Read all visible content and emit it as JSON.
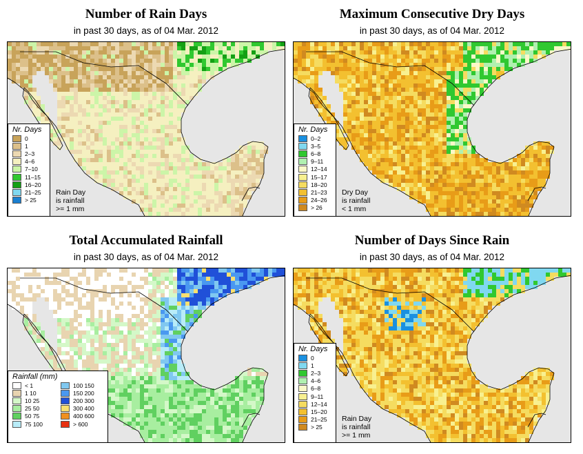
{
  "panels": [
    {
      "id": "rain-days",
      "title": "Number of Rain Days",
      "subtitle": "in past 30 days, as of  04 Mar. 2012",
      "legend": {
        "title": "Nr. Days",
        "items": [
          {
            "label": "0",
            "color": "#c8a35a"
          },
          {
            "label": "1",
            "color": "#dcc08a"
          },
          {
            "label": "2–3",
            "color": "#ecd9b2"
          },
          {
            "label": "4–6",
            "color": "#f5f0c0"
          },
          {
            "label": "7–10",
            "color": "#ccf5a8"
          },
          {
            "label": "11–15",
            "color": "#30c830"
          },
          {
            "label": "16–20",
            "color": "#14a014"
          },
          {
            "label": "21–25",
            "color": "#80d8f0"
          },
          {
            "label": "> 25",
            "color": "#1a7fd0"
          }
        ]
      },
      "note": [
        "Rain Day",
        "is rainfall",
        ">= 1 mm"
      ]
    },
    {
      "id": "dry-days",
      "title": "Maximum Consecutive Dry Days",
      "subtitle": "in past 30 days, as of  04 Mar. 2012",
      "legend": {
        "title": "Nr. Days",
        "items": [
          {
            "label": "0–2",
            "color": "#1a90e0"
          },
          {
            "label": "3–5",
            "color": "#80d8f0"
          },
          {
            "label": "6–8",
            "color": "#30c830"
          },
          {
            "label": "9–11",
            "color": "#b0f0b0"
          },
          {
            "label": "12–14",
            "color": "#fbf8c8"
          },
          {
            "label": "15–17",
            "color": "#f8f090"
          },
          {
            "label": "18–20",
            "color": "#f5dc60"
          },
          {
            "label": "21–23",
            "color": "#f3c030"
          },
          {
            "label": "24–26",
            "color": "#e89c18"
          },
          {
            "label": "> 26",
            "color": "#d08a20"
          }
        ]
      },
      "note": [
        "Dry Day",
        "is rainfall",
        "< 1 mm"
      ]
    },
    {
      "id": "rainfall",
      "title": "Total Accumulated Rainfall",
      "subtitle": "in past 30 days, as of  04 Mar. 2012",
      "legend": {
        "title": "Rainfall (mm)",
        "items": [
          {
            "label": "< 1",
            "color": "#ffffff"
          },
          {
            "label": "1   10",
            "color": "#e8d4b0"
          },
          {
            "label": "10   25",
            "color": "#d4f8c8"
          },
          {
            "label": "25   50",
            "color": "#a8eea0"
          },
          {
            "label": "50   75",
            "color": "#60d060"
          },
          {
            "label": "75   100",
            "color": "#b8ecf8"
          },
          {
            "label": "100   150",
            "color": "#80c8f0"
          },
          {
            "label": "150   200",
            "color": "#4a98f0"
          },
          {
            "label": "200   300",
            "color": "#2050d8"
          },
          {
            "label": "300   400",
            "color": "#f8e070"
          },
          {
            "label": "400   600",
            "color": "#f09020"
          },
          {
            "label": "> 600",
            "color": "#e83010"
          }
        ]
      }
    },
    {
      "id": "days-since-rain",
      "title": "Number of Days Since Rain",
      "subtitle": "in past 30 days, as of  04 Mar. 2012",
      "legend": {
        "title": "Nr. Days",
        "items": [
          {
            "label": "0",
            "color": "#1a90e0"
          },
          {
            "label": "1",
            "color": "#80d8f0"
          },
          {
            "label": "2–3",
            "color": "#30c830"
          },
          {
            "label": "4–6",
            "color": "#b0f0b0"
          },
          {
            "label": "6–8",
            "color": "#fbf8c8"
          },
          {
            "label": "9–11",
            "color": "#f8f090"
          },
          {
            "label": "12–14",
            "color": "#f5dc60"
          },
          {
            "label": "15–20",
            "color": "#f3c030"
          },
          {
            "label": "21–25",
            "color": "#e89c18"
          },
          {
            "label": "> 25",
            "color": "#d08a20"
          }
        ]
      },
      "note": [
        "Rain Day",
        "is rainfall",
        ">= 1 mm"
      ]
    }
  ]
}
